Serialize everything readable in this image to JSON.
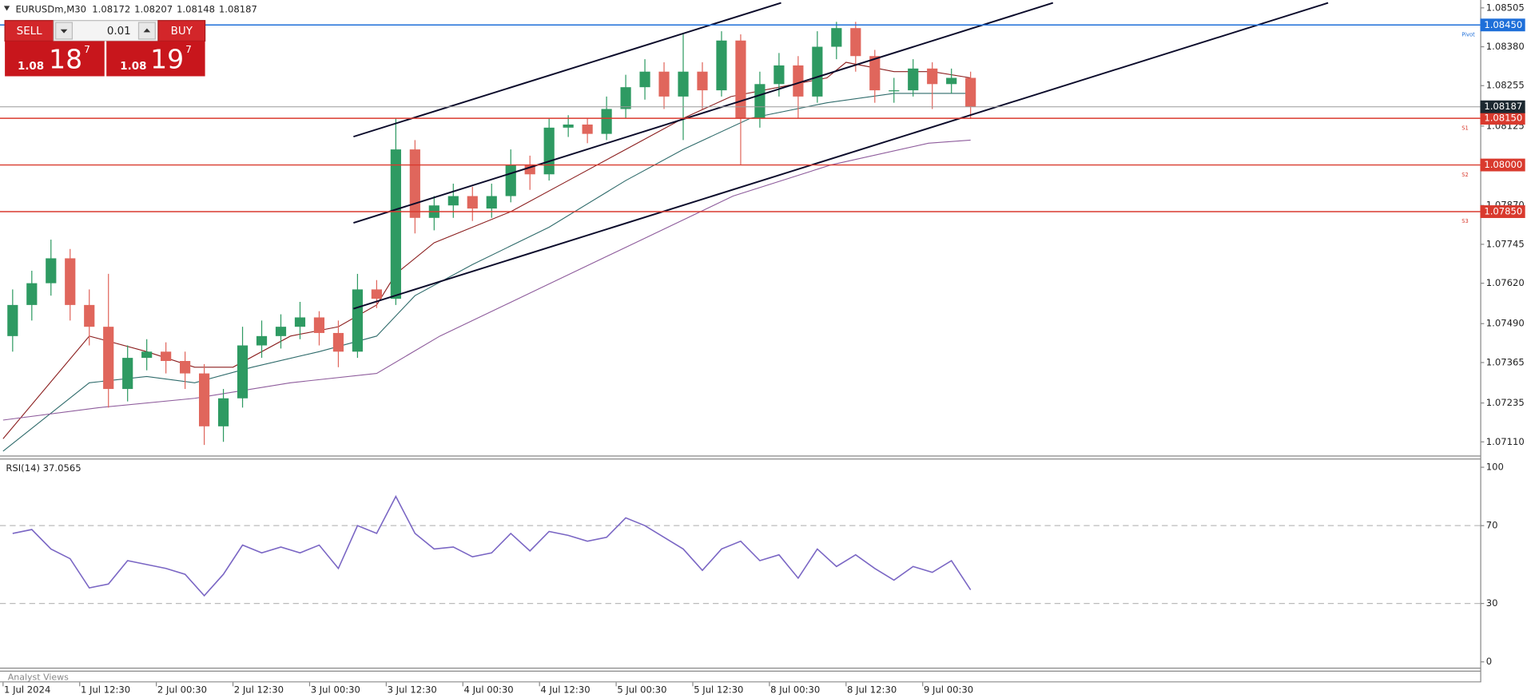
{
  "chart_data": [
    {
      "type": "candlestick",
      "title": "EURUSDm,M30",
      "ohlc_header": [
        1.08172,
        1.08207,
        1.08148,
        1.08187
      ],
      "xlim": [
        -0.66,
        76.6
      ],
      "ylim": [
        1.07066,
        1.08524
      ],
      "yticks": [
        1.08505,
        {
          "value": 1.0838,
          "label": "1.08380"
        },
        1.08255,
        1.08125,
        {
          "value": 1.0787,
          "label": "1.07870"
        },
        1.07745,
        {
          "value": 1.0762,
          "label": "1.07620"
        },
        {
          "value": 1.0749,
          "label": "1.07490"
        },
        1.07365,
        1.07235,
        {
          "value": 1.0711,
          "label": "1.07110"
        }
      ],
      "grid": false,
      "up_color": "#2e9a62",
      "down_color": "#e0665c",
      "open": [
        1.0745,
        1.0755,
        1.0762,
        1.077,
        1.0755,
        1.0748,
        1.0728,
        1.0738,
        1.074,
        1.0737,
        1.0733,
        1.0716,
        1.0725,
        1.0742,
        1.0745,
        1.0748,
        1.0751,
        1.0746,
        1.074,
        1.076,
        1.0757,
        1.0805,
        1.0783,
        1.0787,
        1.079,
        1.0786,
        1.079,
        1.08,
        1.0797,
        1.0812,
        1.0813,
        1.081,
        1.0818,
        1.0825,
        1.083,
        1.0822,
        1.083,
        1.0824,
        1.084,
        1.0815,
        1.0826,
        1.0832,
        1.0822,
        1.0838,
        1.0844,
        1.0835,
        1.0824,
        1.0824,
        1.0831,
        1.0826,
        1.0828
      ],
      "high": [
        1.076,
        1.0766,
        1.0776,
        1.0773,
        1.076,
        1.0765,
        1.0742,
        1.0744,
        1.0743,
        1.074,
        1.0736,
        1.0728,
        1.0748,
        1.075,
        1.0752,
        1.0756,
        1.0753,
        1.075,
        1.0765,
        1.0763,
        1.0815,
        1.0808,
        1.079,
        1.0794,
        1.0793,
        1.0794,
        1.0805,
        1.0803,
        1.0815,
        1.0816,
        1.0815,
        1.0822,
        1.0829,
        1.0834,
        1.0833,
        1.0842,
        1.0833,
        1.0843,
        1.0842,
        1.083,
        1.0836,
        1.0835,
        1.0843,
        1.0846,
        1.0846,
        1.0837,
        1.0828,
        1.0834,
        1.0833,
        1.0831,
        1.083
      ],
      "low": [
        1.074,
        1.075,
        1.0758,
        1.075,
        1.0742,
        1.0722,
        1.0724,
        1.0734,
        1.0733,
        1.0728,
        1.071,
        1.0711,
        1.0722,
        1.0738,
        1.0741,
        1.0744,
        1.0742,
        1.0735,
        1.0738,
        1.0754,
        1.0755,
        1.0778,
        1.0779,
        1.0783,
        1.0782,
        1.0783,
        1.0788,
        1.0792,
        1.0795,
        1.0809,
        1.0807,
        1.0808,
        1.0815,
        1.0821,
        1.0818,
        1.0808,
        1.0818,
        1.0822,
        1.08,
        1.0812,
        1.0822,
        1.0815,
        1.082,
        1.0834,
        1.083,
        1.082,
        1.082,
        1.0822,
        1.0818,
        1.0823,
        1.08148
      ],
      "close": [
        1.0755,
        1.0762,
        1.077,
        1.0755,
        1.0748,
        1.0728,
        1.0738,
        1.074,
        1.0737,
        1.0733,
        1.0716,
        1.0725,
        1.0742,
        1.0745,
        1.0748,
        1.0751,
        1.0746,
        1.074,
        1.076,
        1.0757,
        1.0805,
        1.0783,
        1.0787,
        1.079,
        1.0786,
        1.079,
        1.08,
        1.0797,
        1.0812,
        1.0813,
        1.081,
        1.0818,
        1.0825,
        1.083,
        1.0822,
        1.083,
        1.0824,
        1.084,
        1.0815,
        1.0826,
        1.0832,
        1.0822,
        1.0838,
        1.0844,
        1.0835,
        1.0824,
        1.0824,
        1.0831,
        1.0826,
        1.0828,
        1.08187
      ],
      "moving_averages": [
        {
          "color": "#8b1e1e",
          "x": [
            -0.5,
            4,
            7,
            9.5,
            11.5,
            14.5,
            17,
            19,
            20,
            22,
            26,
            29,
            32,
            35,
            37.5,
            40,
            42.5,
            43.5,
            46,
            48,
            50
          ],
          "values": [
            1.0712,
            1.0745,
            1.074,
            1.0735,
            1.0735,
            1.0745,
            1.0748,
            1.0755,
            1.0765,
            1.0775,
            1.0785,
            1.0795,
            1.0805,
            1.0815,
            1.0822,
            1.0825,
            1.0828,
            1.0833,
            1.083,
            1.083,
            1.0828
          ]
        },
        {
          "color": "#2f6b6b",
          "x": [
            -0.5,
            4,
            7,
            9.5,
            12.5,
            16,
            19,
            21,
            24,
            28,
            32,
            35,
            38.5,
            42.5,
            46,
            50
          ],
          "values": [
            1.0708,
            1.073,
            1.0732,
            1.073,
            1.0735,
            1.074,
            1.0745,
            1.0758,
            1.0768,
            1.078,
            1.0795,
            1.0805,
            1.0815,
            1.082,
            1.0823,
            1.0823
          ]
        },
        {
          "color": "#8e5c9c",
          "x": [
            -0.5,
            4.5,
            9.5,
            14.5,
            19,
            22.3,
            27.4,
            32.5,
            37.6,
            42.7,
            47.8,
            50
          ],
          "values": [
            1.0718,
            1.0722,
            1.0725,
            1.073,
            1.0733,
            1.0745,
            1.076,
            1.0775,
            1.079,
            1.08,
            1.0807,
            1.0808
          ]
        }
      ],
      "trendlines": [
        {
          "color": "#0a0a2a",
          "x": [
            17.79,
            40.11
          ],
          "values": [
            1.08091,
            1.08521
          ]
        },
        {
          "color": "#0a0a2a",
          "x": [
            17.79,
            54.3
          ],
          "values": [
            1.07814,
            1.08521
          ]
        },
        {
          "color": "#0a0a2a",
          "x": [
            17.79,
            68.66
          ],
          "values": [
            1.07538,
            1.08521
          ]
        }
      ],
      "levels": [
        {
          "value": 1.0845,
          "label": "1.08450",
          "name": "Pivot",
          "color": "#1e6fd9"
        },
        {
          "value": 1.0815,
          "label": "1.08150",
          "name": "S1",
          "color": "#d93a2e"
        },
        {
          "value": 1.08,
          "label": "1.08000",
          "name": "S2",
          "color": "#d93a2e"
        },
        {
          "value": 1.0785,
          "label": "1.07850",
          "name": "S3",
          "color": "#d93a2e"
        }
      ],
      "current_price": {
        "value": 1.08187,
        "label": "1.08187",
        "color": "#1c2830"
      }
    },
    {
      "type": "line",
      "title": "RSI(14) 37.0565",
      "xlim": [
        -0.66,
        76.6
      ],
      "ylim": [
        -3,
        104
      ],
      "yticks": [
        100,
        70,
        30,
        0
      ],
      "levels": [
        70,
        30
      ],
      "color": "#7a66c4",
      "values": [
        66,
        68,
        58,
        53,
        38,
        40,
        52,
        50,
        48,
        45,
        34,
        45,
        60,
        56,
        59,
        56,
        60,
        48,
        70,
        66,
        85,
        66,
        58,
        59,
        54,
        56,
        66,
        57,
        67,
        65,
        62,
        64,
        74,
        70,
        64,
        58,
        47,
        58,
        62,
        52,
        55,
        43,
        58,
        49,
        55,
        48,
        42,
        49,
        46,
        52,
        37
      ],
      "xticks": [
        {
          "value": -0.5,
          "label": "1 Jul 2024"
        },
        {
          "value": 3.5,
          "label": "1 Jul 12:30"
        },
        {
          "value": 7.5,
          "label": "2 Jul 00:30"
        },
        {
          "value": 11.5,
          "label": "2 Jul 12:30"
        },
        {
          "value": 15.5,
          "label": "3 Jul 00:30"
        },
        {
          "value": 19.5,
          "label": "3 Jul 12:30"
        },
        {
          "value": 23.5,
          "label": "4 Jul 00:30"
        },
        {
          "value": 27.5,
          "label": "4 Jul 12:30"
        },
        {
          "value": 31.5,
          "label": "5 Jul 00:30"
        },
        {
          "value": 35.5,
          "label": "5 Jul 12:30"
        },
        {
          "value": 39.5,
          "label": "8 Jul 00:30"
        },
        {
          "value": 43.5,
          "label": "8 Jul 12:30"
        },
        {
          "value": 47.5,
          "label": "9 Jul 00:30"
        }
      ]
    }
  ],
  "trade_panel": {
    "sell": "SELL",
    "buy": "BUY",
    "lot": "0.01",
    "sell_price": {
      "prefix": "1.08",
      "big": "18",
      "sup": "7"
    },
    "buy_price": {
      "prefix": "1.08",
      "big": "19",
      "sup": "7"
    }
  },
  "footer": {
    "panel": "Analyst Views"
  }
}
